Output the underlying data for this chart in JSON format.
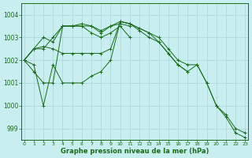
{
  "title": "Graphe pression niveau de la mer (hPa)",
  "bg_color": "#c8eef0",
  "grid_color": "#a8d4d8",
  "line_color": "#1a6b1a",
  "ylim": [
    998.5,
    1004.5
  ],
  "xlim": [
    -0.3,
    23.3
  ],
  "yticks": [
    999,
    1000,
    1001,
    1002,
    1003,
    1004
  ],
  "xticks": [
    0,
    1,
    2,
    3,
    4,
    5,
    6,
    7,
    8,
    9,
    10,
    11,
    12,
    13,
    14,
    15,
    16,
    17,
    18,
    19,
    20,
    21,
    22,
    23
  ],
  "series_long1": [
    1002.0,
    1001.8,
    1000.0,
    1001.8,
    1001.0,
    1001.0,
    1001.0,
    1001.3,
    1001.5,
    1002.0,
    1003.7,
    1003.6,
    1003.4,
    1003.2,
    1003.0,
    1002.5,
    1002.0,
    1001.8,
    1001.8,
    1001.0,
    1000.0,
    999.5,
    998.8,
    998.6
  ],
  "series_long2": [
    1002.0,
    1002.5,
    1002.6,
    1002.5,
    1002.3,
    1002.3,
    1002.3,
    1002.3,
    1002.3,
    1002.5,
    1003.7,
    1003.6,
    1003.4,
    1003.2,
    1002.8,
    1002.3,
    1001.8,
    1001.5,
    1001.8,
    1001.0,
    1000.0,
    999.6,
    999.0,
    998.8
  ],
  "series_med": [
    1002.0,
    1002.5,
    1003.0,
    1002.8,
    1003.5,
    1003.5,
    1003.6,
    1003.5,
    1003.3,
    1003.5,
    1003.7,
    1003.6,
    1003.3,
    1003.0,
    1002.8,
    1002.3,
    1001.8,
    1001.5
  ],
  "series_short1": [
    1002.0,
    1002.5,
    1002.5,
    1003.0,
    1003.5,
    1003.5,
    1003.5,
    1003.5,
    1003.2,
    1003.5,
    1003.6,
    1003.5
  ],
  "series_short2": [
    1002.0,
    1001.5,
    1001.0,
    1001.0,
    1003.5,
    1003.5,
    1003.5,
    1003.2,
    1003.0,
    1003.2,
    1003.5,
    1003.0
  ]
}
